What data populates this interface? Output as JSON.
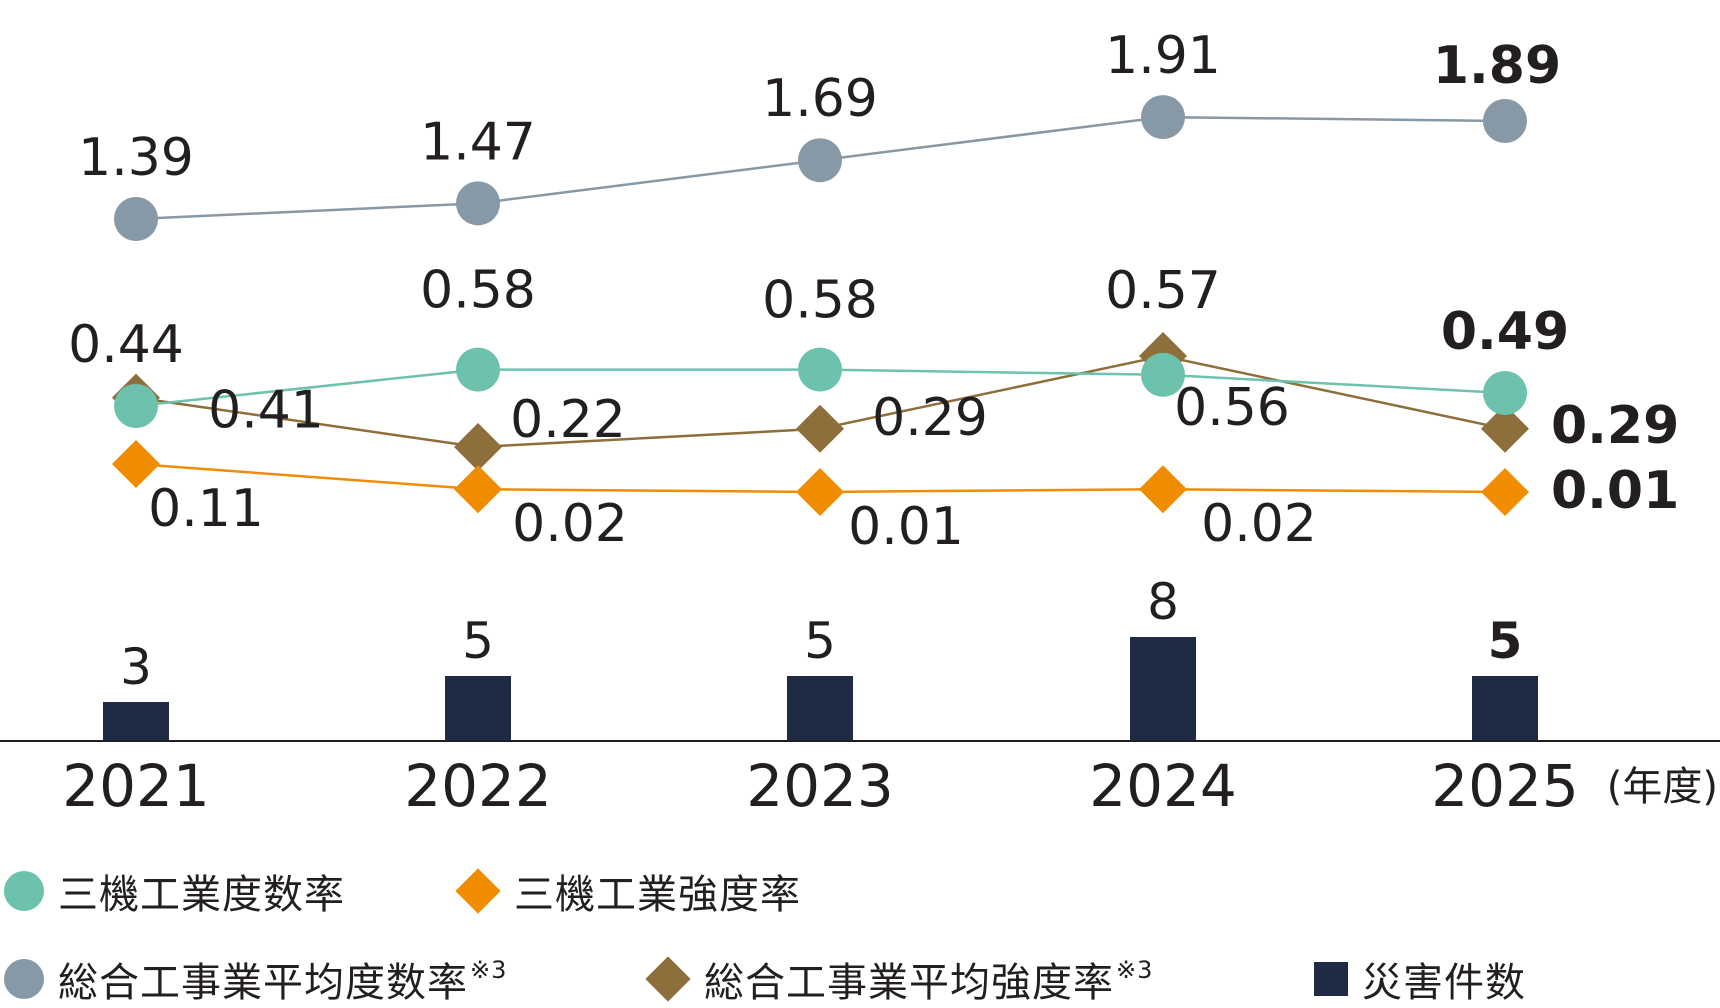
{
  "chart_data": {
    "type": "bar+line",
    "categories": [
      "2021",
      "2022",
      "2023",
      "2024",
      "2025"
    ],
    "x_unit": "(年度)",
    "emphasized_category": "2025",
    "bars": {
      "name": "災害件数",
      "values": [
        3,
        5,
        5,
        8,
        5
      ],
      "labels": [
        "3",
        "5",
        "5",
        "8",
        "5"
      ],
      "color": "#1f2a44"
    },
    "series": [
      {
        "key": "sogo_dosu",
        "name": "総合工事業平均度数率",
        "values": [
          1.39,
          1.47,
          1.69,
          1.91,
          1.89
        ],
        "labels": [
          "1.39",
          "1.47",
          "1.69",
          "1.91",
          "1.89"
        ],
        "marker": "circle",
        "color": "#8798a6"
      },
      {
        "key": "sanki_dosu",
        "name": "三機工業度数率",
        "values": [
          0.44,
          0.58,
          0.58,
          0.56,
          0.49
        ],
        "labels": [
          "0.44",
          "0.58",
          "0.58",
          "0.56",
          "0.49"
        ],
        "marker": "circle",
        "color": "#6cc2ac"
      },
      {
        "key": "sogo_kyodo",
        "name": "総合工事業平均強度率",
        "values": [
          0.41,
          0.22,
          0.29,
          0.57,
          0.29
        ],
        "labels": [
          "0.41",
          "0.22",
          "0.29",
          "0.57",
          "0.29"
        ],
        "marker": "diamond",
        "color": "#8e6e3a"
      },
      {
        "key": "sanki_kyodo",
        "name": "三機工業強度率",
        "values": [
          0.11,
          0.02,
          0.01,
          0.02,
          0.01
        ],
        "labels": [
          "0.11",
          "0.02",
          "0.01",
          "0.02",
          "0.01"
        ],
        "marker": "diamond",
        "color": "#f08c00"
      }
    ],
    "grid": false
  },
  "legend": {
    "sanki_dosu": "三機工業度数率",
    "sanki_kyodo": "三機工業強度率",
    "sogo_dosu": "総合工事業平均度数率",
    "sogo_dosu_note": "※3",
    "sogo_kyodo": "総合工事業平均強度率",
    "sogo_kyodo_note": "※3",
    "bars": "災害件数"
  }
}
